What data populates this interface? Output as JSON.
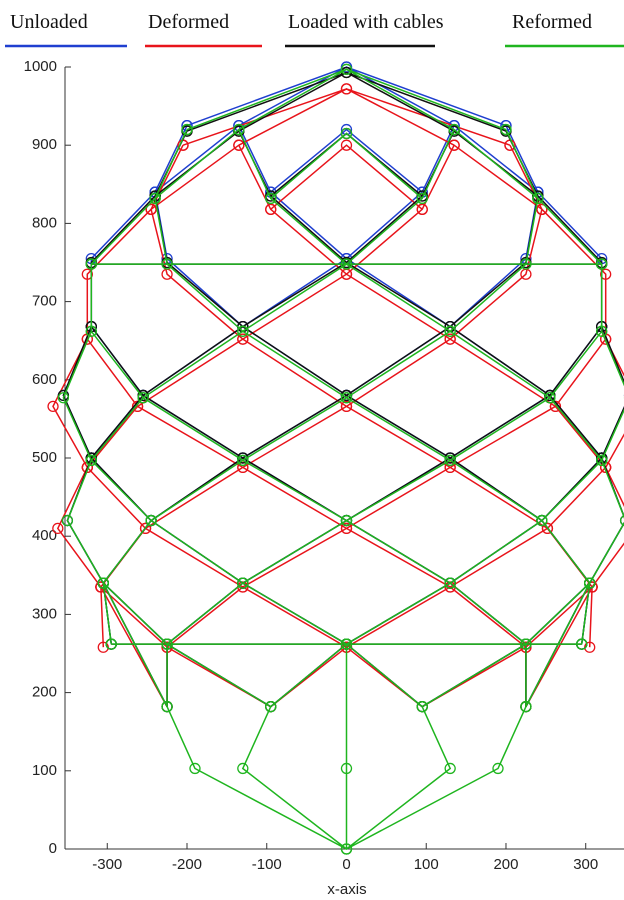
{
  "chart_data": {
    "type": "line",
    "xlabel": "x-axis",
    "xlim": [
      -353,
      348
    ],
    "ylim": [
      0,
      1000
    ],
    "xticks": [
      -300,
      -200,
      -100,
      0,
      100,
      200,
      300
    ],
    "yticks": [
      0,
      100,
      200,
      300,
      400,
      500,
      600,
      700,
      800,
      900,
      1000
    ],
    "legend": "top",
    "markers": true,
    "series": [
      {
        "name": "Unloaded",
        "color": "#1f3fd0",
        "x": [
          -200,
          -240,
          -320,
          -320,
          -355,
          -320,
          -350,
          -305,
          -295,
          null,
          200,
          240,
          320,
          320,
          355,
          320,
          350,
          305,
          295,
          null,
          -200,
          0,
          200,
          null,
          -135,
          0,
          135,
          null,
          -240,
          -135,
          -95,
          0,
          130,
          255,
          320,
          null,
          240,
          135,
          95,
          0,
          -130,
          -255,
          -320,
          null,
          -95,
          0,
          95,
          null,
          -240,
          -225,
          -130,
          0,
          130,
          245,
          305,
          null,
          240,
          225,
          130,
          0,
          -130,
          -245,
          -305,
          null,
          -320,
          -255,
          -130,
          0,
          130,
          225,
          null,
          320,
          255,
          130,
          0,
          -130,
          -225,
          null,
          -320,
          -245,
          -130,
          0,
          null,
          320,
          245,
          130,
          0,
          null,
          -305,
          -225,
          -95,
          0,
          95,
          225,
          305,
          null,
          -305,
          -225,
          -225,
          null,
          305,
          225,
          225
        ],
        "y": [
          925,
          840,
          755,
          668,
          580,
          500,
          420,
          340,
          262,
          null,
          925,
          840,
          755,
          668,
          580,
          500,
          420,
          340,
          262,
          null,
          925,
          1000,
          925,
          null,
          925,
          1000,
          925,
          null,
          840,
          925,
          840,
          755,
          668,
          580,
          500,
          null,
          840,
          925,
          840,
          755,
          668,
          580,
          500,
          null,
          840,
          920,
          840,
          null,
          840,
          755,
          668,
          580,
          500,
          420,
          340,
          null,
          840,
          755,
          668,
          580,
          500,
          420,
          340,
          null,
          668,
          580,
          500,
          420,
          340,
          262,
          null,
          668,
          580,
          500,
          420,
          340,
          262,
          null,
          500,
          420,
          340,
          262,
          null,
          500,
          420,
          340,
          262,
          null,
          340,
          262,
          182,
          262,
          182,
          262,
          340,
          null,
          340,
          182,
          262,
          null,
          340,
          182,
          262
        ]
      },
      {
        "name": "Deformed",
        "color": "#e8141b",
        "x": [
          -205,
          -245,
          -325,
          -325,
          -368,
          -325,
          -362,
          -308,
          -305,
          null,
          205,
          245,
          325,
          325,
          368,
          325,
          362,
          308,
          305,
          null,
          -205,
          0,
          205,
          null,
          -135,
          0,
          135,
          null,
          -245,
          -135,
          -95,
          0,
          130,
          262,
          325,
          null,
          245,
          135,
          95,
          0,
          -130,
          -262,
          -325,
          null,
          -95,
          0,
          95,
          null,
          -245,
          -225,
          -130,
          0,
          130,
          252,
          308,
          null,
          245,
          225,
          130,
          0,
          -130,
          -252,
          -308,
          null,
          -325,
          -262,
          -130,
          0,
          130,
          225,
          null,
          325,
          262,
          130,
          0,
          -130,
          -225,
          null,
          -325,
          -252,
          -130,
          0,
          null,
          325,
          252,
          130,
          0,
          null,
          -308,
          -225,
          -95,
          0,
          95,
          225,
          308,
          null,
          -308,
          -225,
          -225,
          null,
          308,
          225,
          225
        ],
        "y": [
          900,
          818,
          735,
          652,
          566,
          488,
          410,
          335,
          258,
          null,
          900,
          818,
          735,
          652,
          566,
          488,
          410,
          335,
          258,
          null,
          900,
          972,
          900,
          null,
          900,
          972,
          900,
          null,
          818,
          900,
          818,
          735,
          652,
          566,
          488,
          null,
          818,
          900,
          818,
          735,
          652,
          566,
          488,
          null,
          818,
          900,
          818,
          null,
          818,
          735,
          652,
          566,
          488,
          410,
          335,
          null,
          818,
          735,
          652,
          566,
          488,
          410,
          335,
          null,
          652,
          566,
          488,
          410,
          335,
          258,
          null,
          652,
          566,
          488,
          410,
          335,
          258,
          null,
          488,
          410,
          335,
          258,
          null,
          488,
          410,
          335,
          258,
          null,
          335,
          258,
          182,
          258,
          182,
          258,
          335,
          null,
          335,
          182,
          258,
          null,
          335,
          182,
          258
        ]
      },
      {
        "name": "Loaded with cables",
        "color": "#111111",
        "x": [
          -200,
          -240,
          -320,
          -320,
          -355,
          -320,
          -350,
          -305,
          -295,
          null,
          200,
          240,
          320,
          320,
          355,
          320,
          350,
          305,
          295,
          null,
          -200,
          0,
          200,
          null,
          -135,
          0,
          135,
          null,
          -240,
          -135,
          -95,
          0,
          130,
          255,
          320,
          null,
          240,
          135,
          95,
          0,
          -130,
          -255,
          -320,
          null,
          -95,
          0,
          95,
          null,
          -240,
          -225,
          -130,
          0,
          130,
          245,
          305,
          null,
          240,
          225,
          130,
          0,
          -130,
          -245,
          -305,
          null,
          -320,
          -255,
          -130,
          0,
          130,
          225,
          null,
          320,
          255,
          130,
          0,
          -130,
          -225,
          null,
          -320,
          -245,
          -130,
          0,
          null,
          320,
          245,
          130,
          0,
          null,
          -305,
          -225,
          -95,
          0,
          95,
          225,
          305,
          null,
          -305,
          -225,
          -225,
          null,
          305,
          225,
          225,
          null,
          -320,
          320,
          null,
          -295,
          295
        ],
        "y": [
          918,
          835,
          750,
          668,
          580,
          500,
          420,
          340,
          262,
          null,
          918,
          835,
          750,
          668,
          580,
          500,
          420,
          340,
          262,
          null,
          918,
          993,
          918,
          null,
          918,
          993,
          918,
          null,
          835,
          918,
          835,
          750,
          668,
          580,
          500,
          null,
          835,
          918,
          835,
          750,
          668,
          580,
          500,
          null,
          835,
          915,
          835,
          null,
          835,
          750,
          668,
          580,
          500,
          420,
          340,
          null,
          835,
          750,
          668,
          580,
          500,
          420,
          340,
          null,
          668,
          580,
          500,
          420,
          340,
          262,
          null,
          668,
          580,
          500,
          420,
          340,
          262,
          null,
          500,
          420,
          340,
          262,
          null,
          500,
          420,
          340,
          262,
          null,
          340,
          262,
          182,
          262,
          182,
          262,
          340,
          null,
          340,
          182,
          262,
          null,
          340,
          182,
          262,
          null,
          748,
          748,
          null,
          262,
          262
        ]
      },
      {
        "name": "Reformed",
        "color": "#1fb51f",
        "x": [
          -200,
          -240,
          -320,
          -320,
          -355,
          -320,
          -350,
          -305,
          -295,
          null,
          200,
          240,
          320,
          320,
          355,
          320,
          350,
          305,
          295,
          null,
          -200,
          0,
          200,
          null,
          -135,
          0,
          135,
          null,
          -240,
          -135,
          -95,
          0,
          130,
          255,
          320,
          null,
          240,
          135,
          95,
          0,
          -130,
          -255,
          -320,
          null,
          -95,
          0,
          95,
          null,
          -240,
          -225,
          -130,
          0,
          130,
          245,
          305,
          null,
          240,
          225,
          130,
          0,
          -130,
          -245,
          -305,
          null,
          -320,
          -255,
          -130,
          0,
          130,
          225,
          null,
          320,
          255,
          130,
          0,
          -130,
          -225,
          null,
          -320,
          -245,
          -130,
          0,
          null,
          320,
          245,
          130,
          0,
          null,
          -305,
          -225,
          -95,
          0,
          95,
          225,
          305,
          null,
          -305,
          -225,
          -225,
          null,
          305,
          225,
          225,
          null,
          -320,
          320,
          null,
          -295,
          295,
          null,
          -225,
          -190,
          0,
          190,
          225,
          null,
          -95,
          -130,
          0,
          130,
          95,
          null,
          0,
          0,
          0
        ],
        "y": [
          920,
          832,
          748,
          662,
          577,
          497,
          420,
          340,
          262,
          null,
          920,
          832,
          748,
          662,
          577,
          497,
          420,
          340,
          262,
          null,
          920,
          997,
          920,
          null,
          920,
          997,
          920,
          null,
          832,
          920,
          832,
          748,
          662,
          577,
          497,
          null,
          832,
          920,
          832,
          748,
          662,
          577,
          497,
          null,
          832,
          915,
          832,
          null,
          832,
          748,
          662,
          577,
          497,
          420,
          340,
          null,
          832,
          748,
          662,
          577,
          497,
          420,
          340,
          null,
          662,
          577,
          497,
          420,
          340,
          262,
          null,
          662,
          577,
          497,
          420,
          340,
          262,
          null,
          497,
          420,
          340,
          262,
          null,
          497,
          420,
          340,
          262,
          null,
          340,
          262,
          182,
          262,
          182,
          262,
          340,
          null,
          340,
          182,
          262,
          null,
          340,
          182,
          262,
          null,
          748,
          748,
          null,
          262,
          262,
          null,
          182,
          103,
          0,
          103,
          182,
          null,
          182,
          103,
          0,
          103,
          182,
          null,
          262,
          103,
          0
        ]
      }
    ]
  }
}
